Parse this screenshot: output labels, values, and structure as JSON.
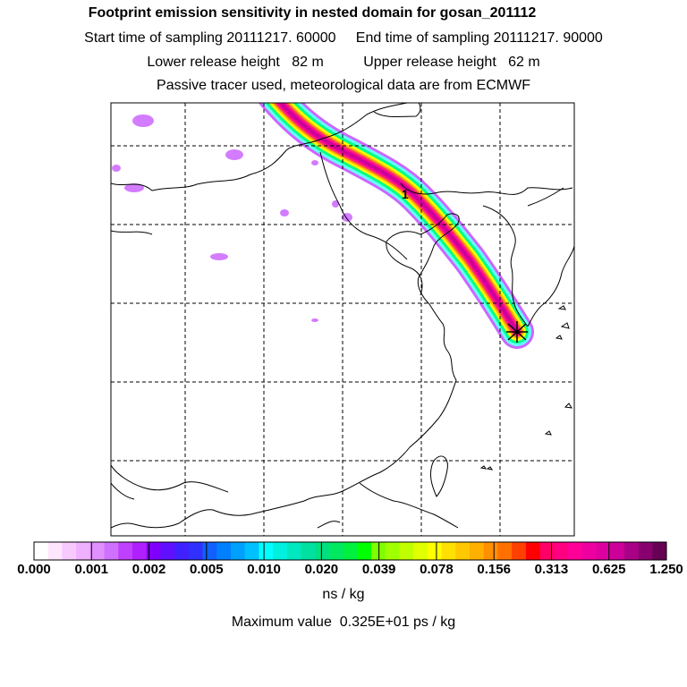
{
  "titles": {
    "line1": "Footprint emission sensitivity in nested domain for gosan_201112",
    "line2": "Start time of sampling 20111217. 60000     End time of sampling 20111217. 90000",
    "line3": "Lower release height   82 m          Upper release height   62 m",
    "line4": "Passive tracer used, meteorological data are from ECMWF"
  },
  "map": {
    "receptor_marker_label": "1",
    "plume_colors": [
      "#cc66ff",
      "#66ffff",
      "#00ff88",
      "#ffff00",
      "#ffaa00",
      "#ff3366",
      "#ff0099",
      "#cc0099"
    ]
  },
  "colorbar": {
    "tick_labels": [
      "0.000",
      "0.001",
      "0.002",
      "0.005",
      "0.010",
      "0.020",
      "0.039",
      "0.078",
      "0.156",
      "0.313",
      "0.625",
      "1.250"
    ],
    "colors": [
      "#ffffff",
      "#ffe6ff",
      "#f7c9ff",
      "#eeb0ff",
      "#e090ff",
      "#d070ff",
      "#c040ff",
      "#b020ff",
      "#8000ff",
      "#6010ff",
      "#4020ff",
      "#3030ff",
      "#1060ff",
      "#0080ff",
      "#00a0ff",
      "#00c0ff",
      "#00ffff",
      "#00f0e0",
      "#00e8c0",
      "#00e0a0",
      "#00e080",
      "#00e860",
      "#00f040",
      "#00ff00",
      "#80ff00",
      "#a0ff00",
      "#c0ff00",
      "#e0ff00",
      "#ffff00",
      "#ffe000",
      "#ffc800",
      "#ffb000",
      "#ff9000",
      "#ff7000",
      "#ff4000",
      "#ff0000",
      "#ff0066",
      "#ff0080",
      "#ff0099",
      "#ee00a0",
      "#dd00a0",
      "#cc0099",
      "#aa0088",
      "#880070",
      "#660055"
    ],
    "units": "ns / kg"
  },
  "max_value_text": "Maximum value  0.325E+01 ps / kg"
}
